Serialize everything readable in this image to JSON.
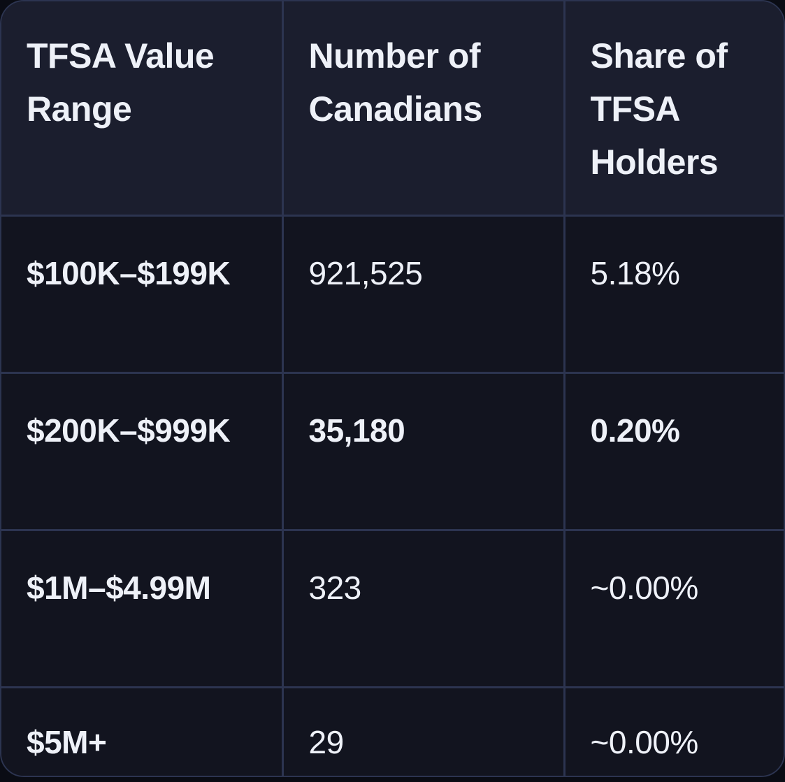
{
  "table": {
    "headers": [
      "TFSA Value Range",
      "Number of Canadians",
      "Share of TFSA Holders"
    ],
    "rows": [
      {
        "range": "$100K–$199K",
        "count": "921,525",
        "share": "5.18%"
      },
      {
        "range": "$200K–$999K",
        "count": "35,180",
        "share": "0.20%"
      },
      {
        "range": "$1M–$4.99M",
        "count": "323",
        "share": "~0.00%"
      },
      {
        "range": "$5M+",
        "count": "29",
        "share": "~0.00%"
      }
    ]
  },
  "colors": {
    "header_bg": "#1b1e2e",
    "body_bg": "#12141f",
    "border": "#2c3450",
    "text": "#eef1f8"
  }
}
